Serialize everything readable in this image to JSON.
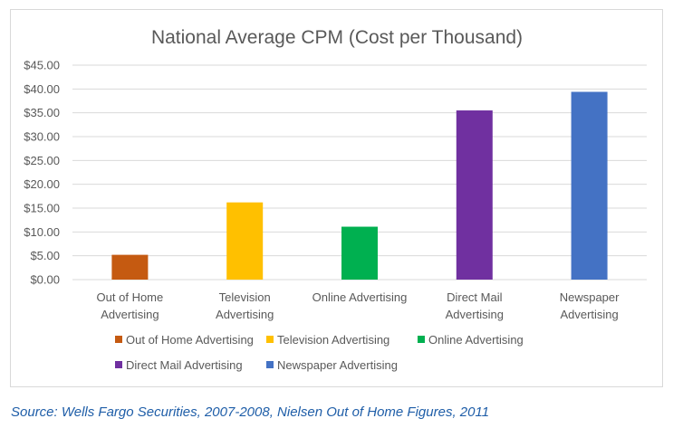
{
  "chart_data": {
    "type": "bar",
    "title": "National Average CPM (Cost per Thousand)",
    "xlabel": "",
    "ylabel": "",
    "ylim": [
      0,
      45
    ],
    "yticks": [
      0,
      5,
      10,
      15,
      20,
      25,
      30,
      35,
      40,
      45
    ],
    "ytick_labels": [
      "$0.00",
      "$5.00",
      "$10.00",
      "$15.00",
      "$20.00",
      "$25.00",
      "$30.00",
      "$35.00",
      "$40.00",
      "$45.00"
    ],
    "grid": true,
    "legend_position": "bottom",
    "categories": [
      [
        "Out of Home",
        "Advertising"
      ],
      [
        "Television",
        "Advertising"
      ],
      [
        "Online Advertising"
      ],
      [
        "Direct Mail",
        "Advertising"
      ],
      [
        "Newspaper",
        "Advertising"
      ]
    ],
    "values": [
      5.2,
      16.2,
      11.1,
      35.5,
      39.4
    ],
    "colors": [
      "#c55a11",
      "#ffc000",
      "#00b050",
      "#7030a0",
      "#4472c4"
    ],
    "legend": [
      "Out of Home Advertising",
      "Television Advertising",
      "Online Advertising",
      "Direct Mail Advertising",
      "Newspaper Advertising"
    ]
  },
  "source_text": "Source: Wells Fargo Securities, 2007-2008, Nielsen Out of Home Figures, 2011"
}
